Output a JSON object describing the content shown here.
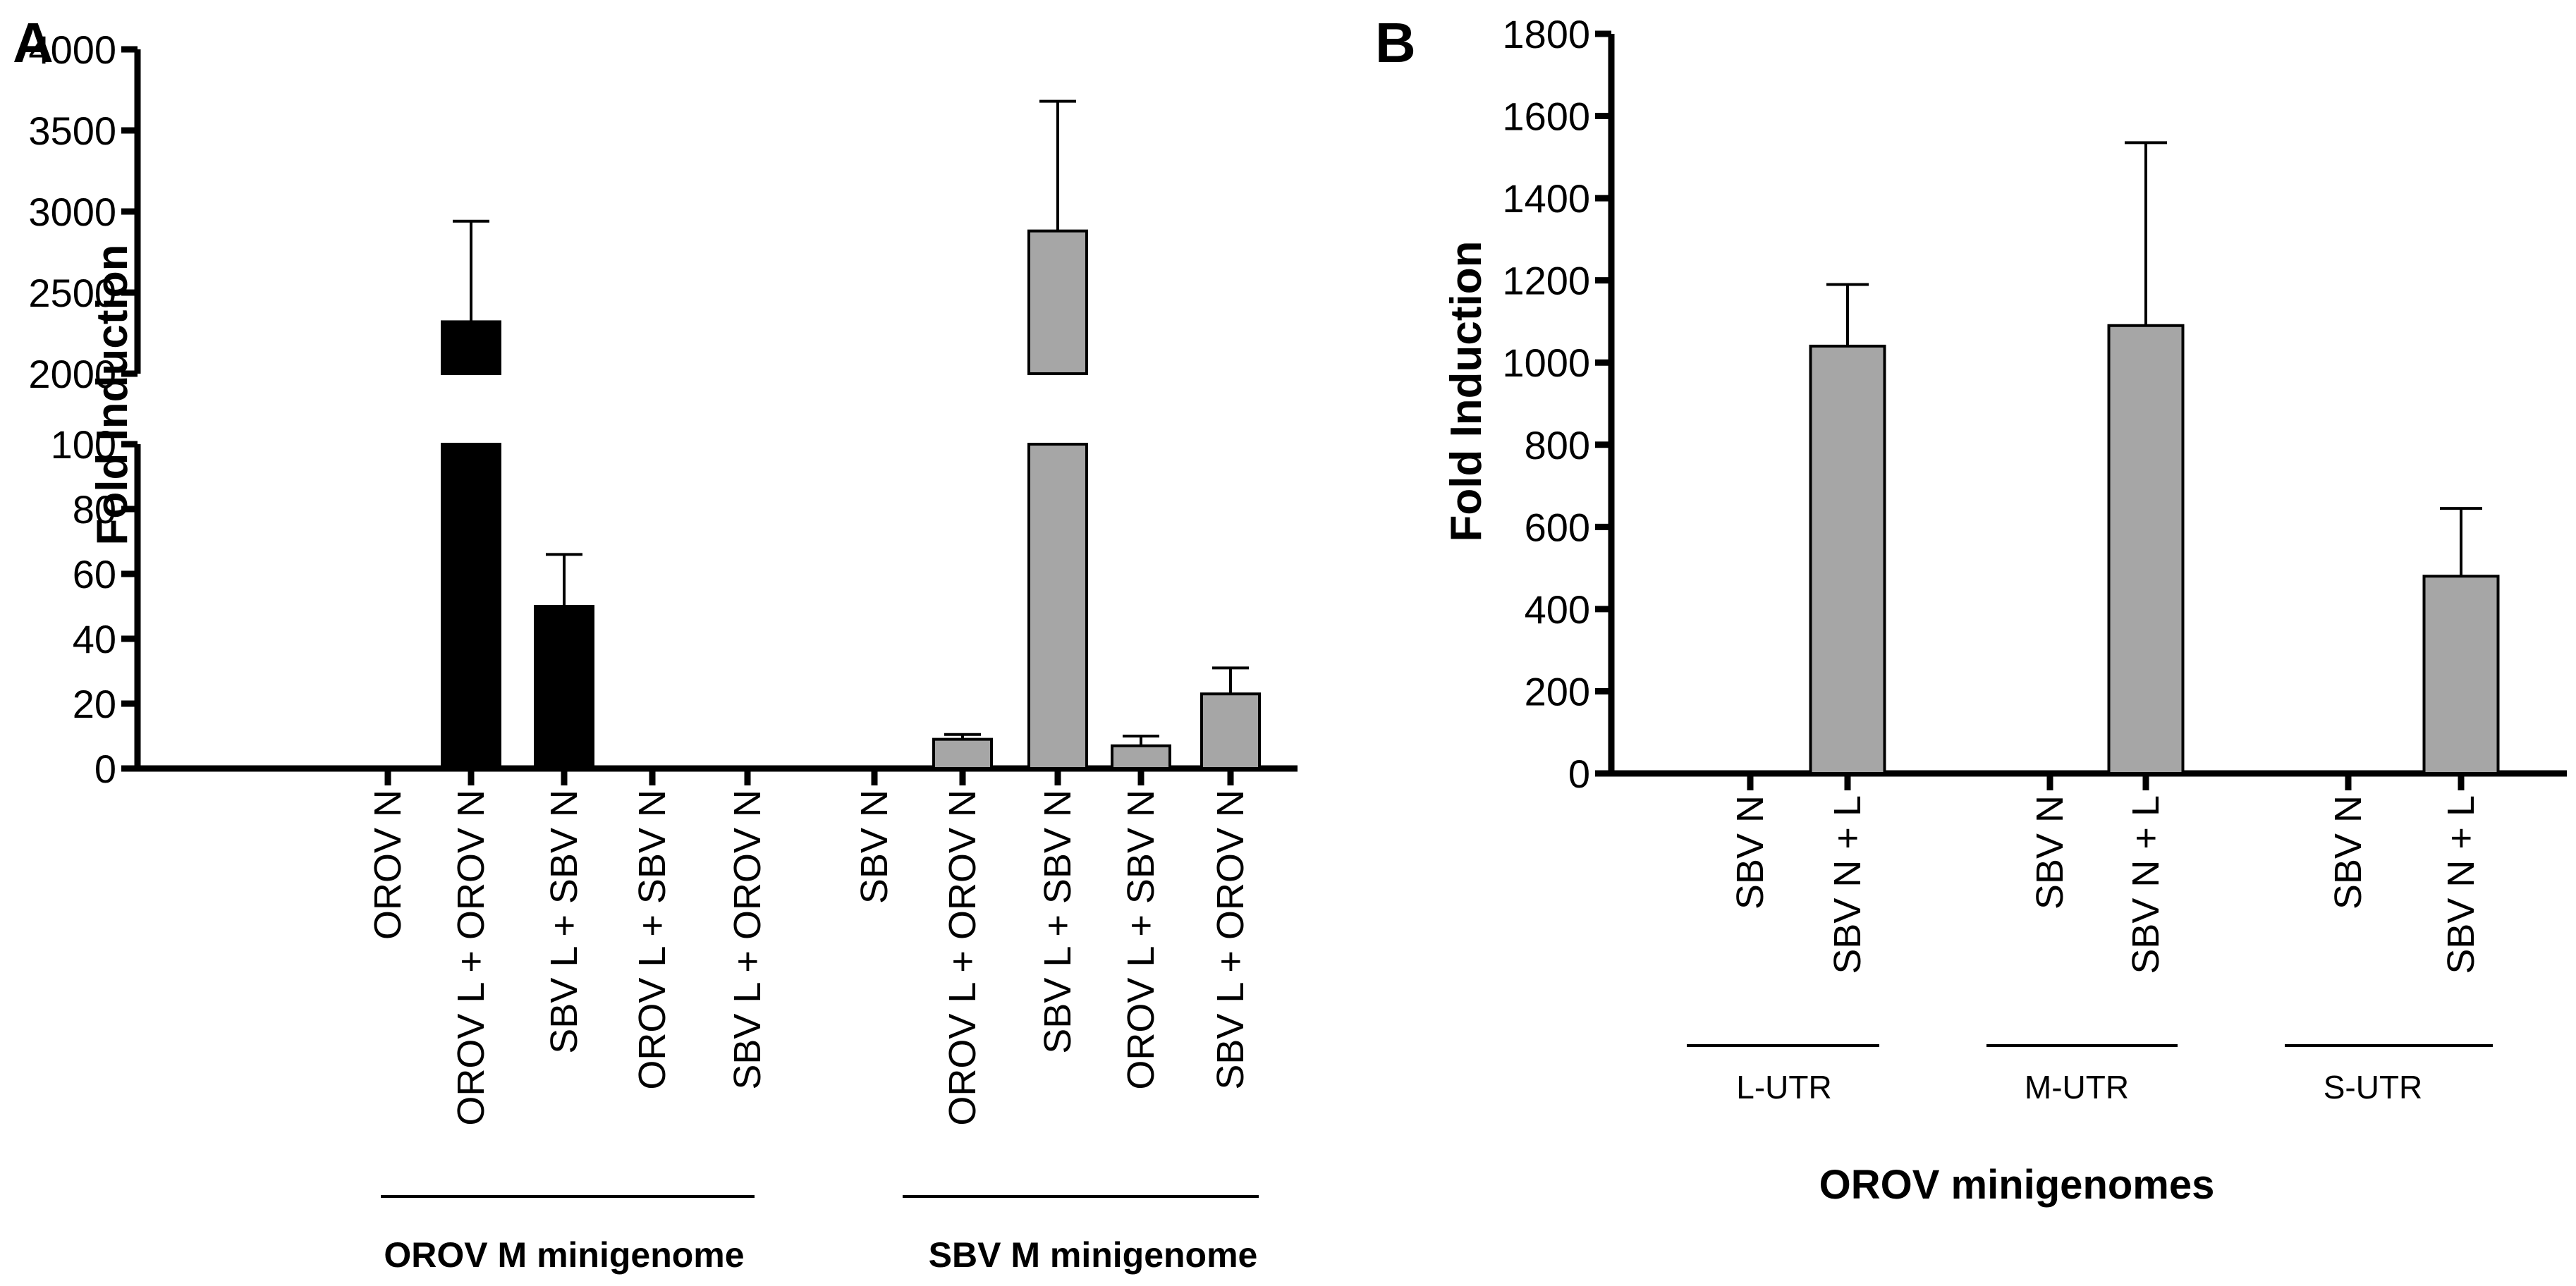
{
  "chart_data": [
    {
      "type": "bar",
      "panel_label": "A",
      "ylabel": "Fold Induction",
      "y_axis_break": true,
      "lower_ylim": [
        0,
        100
      ],
      "upper_ylim": [
        2000,
        4000
      ],
      "lower_ticks": [
        "0",
        "20",
        "40",
        "60",
        "80",
        "100"
      ],
      "upper_ticks": [
        "2000",
        "2500",
        "3000",
        "3500",
        "4000"
      ],
      "categories": [
        "OROV N",
        "OROV L + OROV N",
        "SBV L + SBV N",
        "OROV L + SBV N",
        "SBV L + OROV N",
        "SBV N",
        "OROV L + OROV N",
        "SBV L + SBV N",
        "OROV L + SBV N",
        "SBV L + OROV N"
      ],
      "values": [
        0.3,
        2320,
        50,
        0.3,
        0.5,
        0.3,
        9,
        2880,
        7,
        23
      ],
      "errors": [
        0,
        620,
        16,
        0,
        0,
        0,
        1.5,
        800,
        3,
        8
      ],
      "colors": [
        "#000000",
        "#000000",
        "#000000",
        "#000000",
        "#000000",
        "#a6a6a6",
        "#a6a6a6",
        "#a6a6a6",
        "#a6a6a6",
        "#a6a6a6"
      ],
      "groups": [
        {
          "label": "OROV M minigenome",
          "from": 0,
          "to": 4
        },
        {
          "label": "SBV M minigenome",
          "from": 5,
          "to": 9
        }
      ]
    },
    {
      "type": "bar",
      "panel_label": "B",
      "ylabel": "Fold Induction",
      "xlabel": "OROV minigenomes",
      "ylim": [
        0,
        1800
      ],
      "ticks": [
        "0",
        "200",
        "400",
        "600",
        "800",
        "1000",
        "1200",
        "1400",
        "1600",
        "1800"
      ],
      "categories": [
        "SBV N",
        "SBV N + L",
        "SBV N",
        "SBV N + L",
        "SBV N",
        "SBV N + L"
      ],
      "values": [
        0,
        1040,
        0,
        1090,
        0,
        480
      ],
      "errors": [
        0,
        150,
        0,
        445,
        0,
        165
      ],
      "colors": [
        "#a6a6a6",
        "#a6a6a6",
        "#a6a6a6",
        "#a6a6a6",
        "#a6a6a6",
        "#a6a6a6"
      ],
      "groups": [
        {
          "label": "L-UTR",
          "from": 0,
          "to": 1
        },
        {
          "label": "M-UTR",
          "from": 2,
          "to": 3
        },
        {
          "label": "S-UTR",
          "from": 4,
          "to": 5
        }
      ]
    }
  ]
}
